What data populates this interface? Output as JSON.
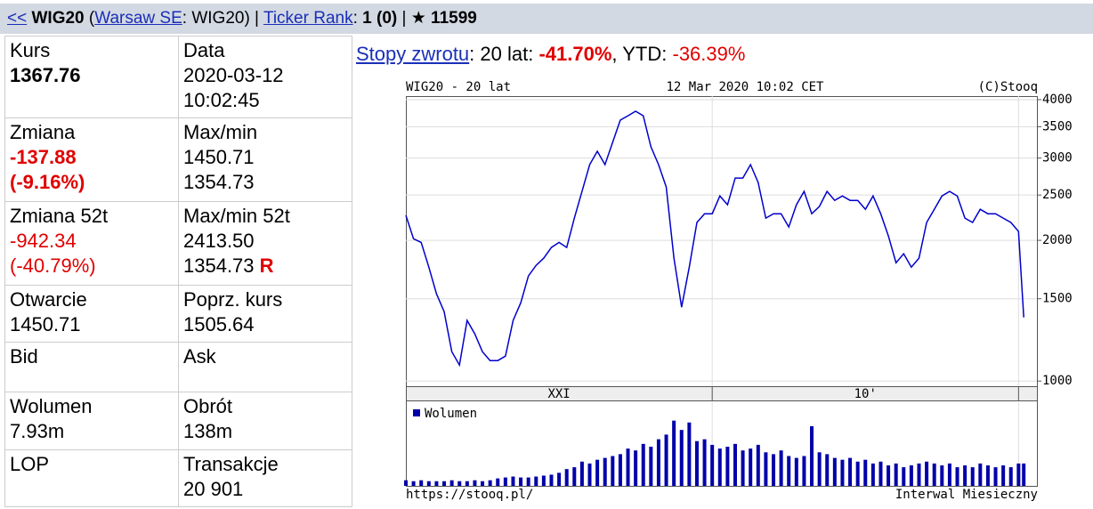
{
  "header": {
    "back": "<<",
    "symbol": "WIG20",
    "open": "(",
    "exchange": "Warsaw SE",
    "ticker_part": ": WIG20) |",
    "rank_link": "Ticker Rank",
    "colon": ":",
    "rank": "1 (0)",
    "star_sep": "| ★",
    "stars": "11599"
  },
  "table": {
    "rows": [
      [
        {
          "label": "Kurs",
          "lines": [
            "1367.76"
          ]
        },
        {
          "label": "Data",
          "lines": [
            "2020-03-12",
            "10:02:45"
          ]
        }
      ],
      [
        {
          "label": "Zmiana",
          "lines": [
            "-137.88",
            "(-9.16%)"
          ]
        },
        {
          "label": "Max/min",
          "lines": [
            "1450.71",
            "1354.73"
          ]
        }
      ],
      [
        {
          "label": "Zmiana 52t",
          "lines": [
            "-942.34",
            "(-40.79%)"
          ]
        },
        {
          "label": "Max/min 52t",
          "lines": [
            "2413.50",
            "1354.73"
          ],
          "flag": "R"
        }
      ],
      [
        {
          "label": "Otwarcie",
          "lines": [
            "1450.71"
          ]
        },
        {
          "label": "Poprz. kurs",
          "lines": [
            "1505.64"
          ]
        }
      ],
      [
        {
          "label": "Bid"
        },
        {
          "label": "Ask"
        }
      ],
      [
        {
          "label": "Wolumen",
          "lines": [
            "7.93m"
          ]
        },
        {
          "label": "Obrót",
          "lines": [
            "138m"
          ]
        }
      ],
      [
        {
          "label": "LOP"
        },
        {
          "label": "Transakcje",
          "lines": [
            "20 901"
          ]
        }
      ]
    ]
  },
  "returns": {
    "link": "Stopy zwrotu",
    "period": ": 20 lat:",
    "period_value": "-41.70%",
    "sep": ",",
    "ytd": "YTD:",
    "ytd_value": "-36.39%"
  },
  "chart_data": {
    "type": "line",
    "title": "WIG20 - 20 lat",
    "timestamp": "12 Mar 2020 10:02 CET",
    "credit": "(C)Stooq",
    "x": [
      2000,
      2000.25,
      2000.5,
      2000.75,
      2001,
      2001.25,
      2001.5,
      2001.75,
      2002,
      2002.25,
      2002.5,
      2002.75,
      2003,
      2003.25,
      2003.5,
      2003.75,
      2004,
      2004.25,
      2004.5,
      2004.75,
      2005,
      2005.25,
      2005.5,
      2005.75,
      2006,
      2006.25,
      2006.5,
      2006.75,
      2007,
      2007.25,
      2007.5,
      2007.75,
      2008,
      2008.25,
      2008.5,
      2008.75,
      2009,
      2009.25,
      2009.5,
      2009.75,
      2010,
      2010.25,
      2010.5,
      2010.75,
      2011,
      2011.25,
      2011.5,
      2011.75,
      2012,
      2012.25,
      2012.5,
      2012.75,
      2013,
      2013.25,
      2013.5,
      2013.75,
      2014,
      2014.25,
      2014.5,
      2014.75,
      2015,
      2015.25,
      2015.5,
      2015.75,
      2016,
      2016.25,
      2016.5,
      2016.75,
      2017,
      2017.25,
      2017.5,
      2017.75,
      2018,
      2018.25,
      2018.5,
      2018.75,
      2019,
      2019.25,
      2019.5,
      2019.75,
      2020,
      2020.17
    ],
    "xlim": [
      2000,
      2020.6
    ],
    "xticks": [
      2010,
      2020
    ],
    "period_labels": [
      {
        "start": 2000,
        "end": 2010,
        "label": "XXI"
      },
      {
        "start": 2010,
        "end": 2020,
        "label": "10'"
      }
    ],
    "ylim": [
      975,
      4070
    ],
    "yticks": [
      1000,
      1500,
      2000,
      2500,
      3000,
      3500,
      4000
    ],
    "log_scale": true,
    "grid": true,
    "series": [
      {
        "color": "#0000cc",
        "values": [
          2262,
          2016,
          1980,
          1753,
          1537,
          1408,
          1156,
          1082,
          1348,
          1262,
          1156,
          1106,
          1106,
          1131,
          1348,
          1471,
          1678,
          1768,
          1832,
          1931,
          1980,
          1931,
          2232,
          2545,
          2904,
          3101,
          2904,
          3241,
          3615,
          3695,
          3777,
          3695,
          3171,
          2904,
          2601,
          1832,
          1439,
          1753,
          2184,
          2280,
          2280,
          2489,
          2383,
          2718,
          2718,
          2904,
          2659,
          2232,
          2280,
          2280,
          2136,
          2383,
          2545,
          2280,
          2363,
          2545,
          2435,
          2489,
          2435,
          2435,
          2330,
          2489,
          2280,
          2044,
          1791,
          1872,
          1753,
          1832,
          2184,
          2330,
          2489,
          2545,
          2489,
          2232,
          2184,
          2330,
          2280,
          2280,
          2232,
          2184,
          2090,
          1368
        ]
      },
      {
        "name": "Wolumen",
        "color": "#0000aa",
        "panel": "volume",
        "values": [
          6,
          5,
          6,
          5,
          5,
          5,
          6,
          5,
          5,
          6,
          5,
          6,
          8,
          9,
          10,
          9,
          9,
          10,
          11,
          12,
          14,
          18,
          20,
          26,
          24,
          28,
          30,
          32,
          34,
          40,
          38,
          45,
          42,
          50,
          55,
          70,
          60,
          68,
          48,
          50,
          44,
          40,
          42,
          45,
          38,
          40,
          44,
          36,
          34,
          38,
          32,
          30,
          32,
          64,
          36,
          34,
          30,
          28,
          30,
          26,
          28,
          24,
          26,
          22,
          24,
          20,
          22,
          24,
          26,
          24,
          22,
          24,
          20,
          22,
          20,
          24,
          22,
          20,
          22,
          20,
          24,
          24
        ]
      }
    ],
    "footer_left": "https://stooq.pl/",
    "footer_right": "Interwal Miesieczny"
  }
}
